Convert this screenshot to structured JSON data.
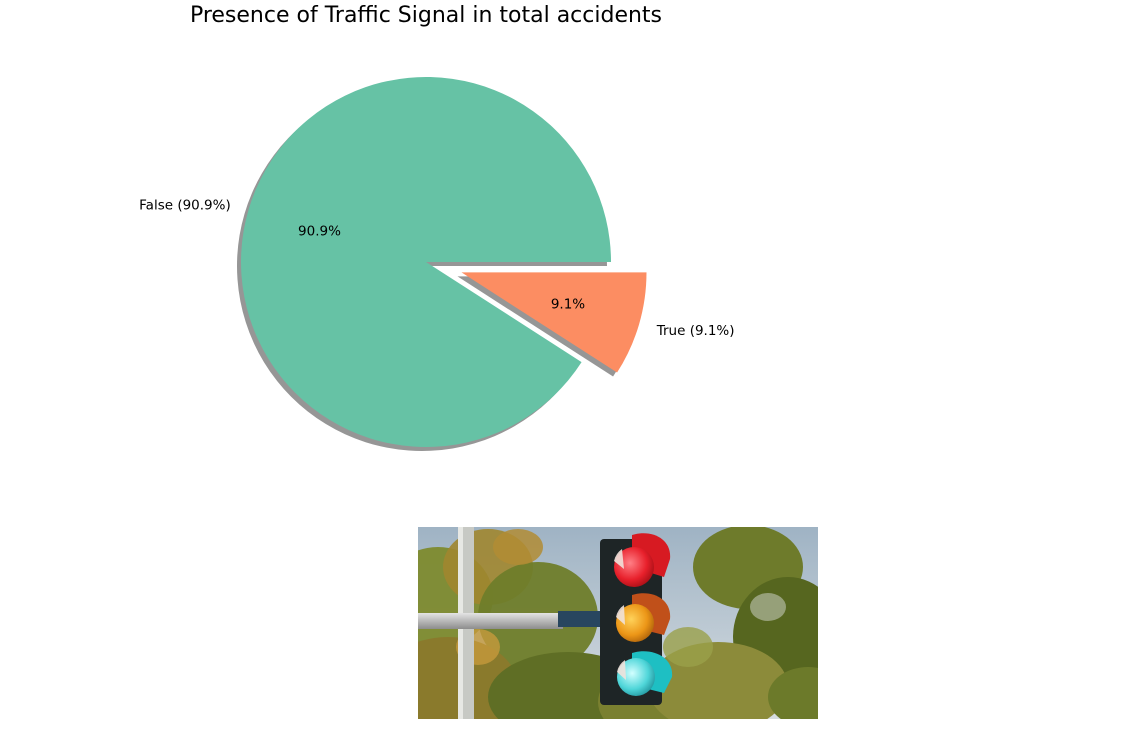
{
  "chart_data": {
    "type": "pie",
    "title": "Presence of Traffic Signal in total accidents",
    "slices": [
      {
        "category": "False",
        "value": 90.9,
        "label": "False (90.9%)",
        "pct_label": "90.9%",
        "color": "#66c2a5",
        "exploded": false
      },
      {
        "category": "True",
        "value": 9.1,
        "label": "True (9.1%)",
        "pct_label": "9.1%",
        "color": "#fc8d62",
        "exploded": true
      }
    ],
    "shadow": true,
    "shadow_color": "#969696"
  },
  "illustration": {
    "icon": "traffic-light-photo",
    "sky_color": "#b9c9d6",
    "foliage_color": "#7c8a2c"
  }
}
